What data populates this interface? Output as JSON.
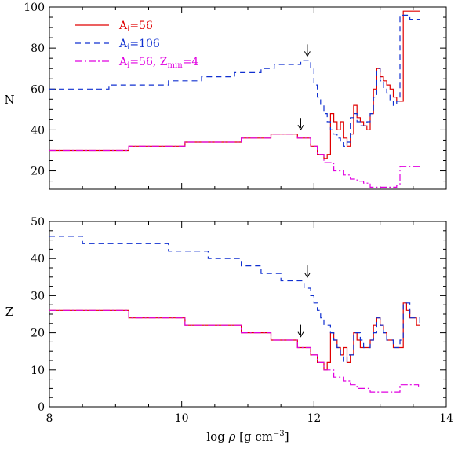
{
  "chart_data": [
    {
      "type": "line",
      "ylabel": "N",
      "xlim": [
        8,
        14
      ],
      "ylim": [
        11,
        100
      ],
      "xticks": [
        8,
        10,
        12,
        14
      ],
      "yticks": [
        20,
        40,
        60,
        80,
        100
      ],
      "ytick_labels": [
        "20",
        "40",
        "60",
        "80",
        "100"
      ],
      "legend": {
        "placement": "top-left",
        "entries": [
          {
            "base": "A",
            "sub": "i",
            "rest": "=56",
            "sub2": "",
            "rest2": ""
          },
          {
            "base": "A",
            "sub": "i",
            "rest": "=106",
            "sub2": "",
            "rest2": ""
          },
          {
            "base": "A",
            "sub": "i",
            "rest": "=56, Z",
            "sub2": "min",
            "rest2": "=4"
          }
        ]
      },
      "arrows": [
        {
          "x": 11.9,
          "y": 78
        },
        {
          "x": 11.8,
          "y": 42
        }
      ],
      "series": [
        {
          "color": "#e00000",
          "dash": "",
          "x": [
            8.0,
            9.2,
            10.05,
            10.9,
            11.35,
            11.75,
            11.95,
            12.05,
            12.15,
            12.2,
            12.25,
            12.3,
            12.35,
            12.4,
            12.45,
            12.5,
            12.55,
            12.6,
            12.65,
            12.7,
            12.75,
            12.8,
            12.85,
            12.9,
            12.95,
            13.0,
            13.05,
            13.1,
            13.15,
            13.2,
            13.25,
            13.3,
            13.35,
            13.4,
            13.6
          ],
          "y": [
            30,
            32,
            34,
            36,
            38,
            36,
            32,
            28,
            26,
            28,
            48,
            44,
            40,
            44,
            36,
            32,
            38,
            52,
            46,
            44,
            42,
            40,
            48,
            60,
            70,
            66,
            64,
            62,
            60,
            56,
            54,
            54,
            98,
            98,
            98
          ]
        },
        {
          "color": "#1030d0",
          "dash": "7,5",
          "x": [
            8.0,
            8.3,
            8.9,
            9.4,
            9.8,
            10.3,
            10.8,
            11.0,
            11.2,
            11.4,
            11.5,
            11.65,
            11.8,
            11.85,
            11.9,
            11.95,
            12.0,
            12.05,
            12.1,
            12.15,
            12.2,
            12.25,
            12.3,
            12.35,
            12.4,
            12.45,
            12.5,
            12.55,
            12.6,
            12.65,
            12.7,
            12.75,
            12.8,
            12.85,
            12.9,
            12.95,
            13.0,
            13.05,
            13.1,
            13.15,
            13.2,
            13.25,
            13.3,
            13.35,
            13.45,
            13.6
          ],
          "y": [
            60,
            60,
            62,
            62,
            64,
            66,
            68,
            68,
            70,
            72,
            72,
            72,
            74,
            74,
            74,
            70,
            62,
            56,
            52,
            48,
            44,
            40,
            38,
            36,
            34,
            32,
            34,
            46,
            48,
            44,
            42,
            42,
            44,
            48,
            56,
            70,
            64,
            60,
            58,
            54,
            52,
            54,
            96,
            96,
            94,
            94
          ]
        },
        {
          "color": "#e000e0",
          "dash": "9,3,2,3",
          "x": [
            8.0,
            9.2,
            10.05,
            10.9,
            11.35,
            11.75,
            11.95,
            12.05,
            12.15,
            12.3,
            12.45,
            12.55,
            12.65,
            12.75,
            12.85,
            13.05,
            13.25,
            13.3,
            13.6
          ],
          "y": [
            30,
            32,
            34,
            36,
            38,
            36,
            32,
            28,
            24,
            20,
            18,
            16,
            15,
            14,
            12,
            12,
            13,
            22,
            22
          ]
        }
      ]
    },
    {
      "type": "line",
      "xlabel_text": "log ",
      "xlabel_symbol": "ρ",
      "xlabel_unit": " [g cm",
      "xlabel_sup": "−3",
      "xlabel_close": "]",
      "ylabel": "Z",
      "xlim": [
        8,
        14
      ],
      "ylim": [
        0,
        50
      ],
      "xticks": [
        8,
        10,
        12,
        14
      ],
      "xtick_labels": [
        "8",
        "10",
        "12",
        "14"
      ],
      "yticks": [
        0,
        10,
        20,
        30,
        40,
        50
      ],
      "ytick_labels": [
        "0",
        "10",
        "20",
        "30",
        "40",
        "50"
      ],
      "arrows": [
        {
          "x": 11.9,
          "y": 36
        },
        {
          "x": 11.8,
          "y": 20
        }
      ],
      "series": [
        {
          "color": "#e00000",
          "dash": "",
          "x": [
            8.0,
            9.2,
            10.05,
            10.9,
            11.35,
            11.75,
            11.95,
            12.05,
            12.15,
            12.2,
            12.25,
            12.3,
            12.35,
            12.4,
            12.45,
            12.5,
            12.55,
            12.6,
            12.65,
            12.7,
            12.75,
            12.8,
            12.85,
            12.9,
            12.95,
            13.0,
            13.05,
            13.1,
            13.15,
            13.2,
            13.25,
            13.3,
            13.35,
            13.4,
            13.45,
            13.55,
            13.6
          ],
          "y": [
            26,
            24,
            22,
            20,
            18,
            16,
            14,
            12,
            10,
            12,
            20,
            18,
            16,
            14,
            16,
            12,
            14,
            20,
            18,
            16,
            16,
            16,
            18,
            22,
            24,
            22,
            20,
            18,
            18,
            16,
            16,
            16,
            28,
            26,
            24,
            22,
            22
          ]
        },
        {
          "color": "#1030d0",
          "dash": "7,5",
          "x": [
            8.0,
            8.5,
            9.8,
            10.4,
            10.9,
            11.2,
            11.5,
            11.85,
            11.95,
            12.0,
            12.05,
            12.1,
            12.15,
            12.2,
            12.25,
            12.3,
            12.35,
            12.4,
            12.45,
            12.5,
            12.55,
            12.6,
            12.65,
            12.7,
            12.75,
            12.8,
            12.85,
            12.9,
            12.95,
            13.0,
            13.05,
            13.1,
            13.15,
            13.2,
            13.25,
            13.3,
            13.35,
            13.45,
            13.6
          ],
          "y": [
            46,
            44,
            42,
            40,
            38,
            36,
            34,
            32,
            30,
            28,
            26,
            24,
            22,
            22,
            20,
            18,
            16,
            14,
            12,
            14,
            14,
            20,
            20,
            18,
            16,
            16,
            18,
            20,
            24,
            22,
            20,
            18,
            18,
            16,
            16,
            18,
            28,
            24,
            22
          ]
        },
        {
          "color": "#e000e0",
          "dash": "9,3,2,3",
          "x": [
            8.0,
            9.2,
            10.05,
            10.9,
            11.35,
            11.75,
            11.95,
            12.05,
            12.15,
            12.3,
            12.45,
            12.55,
            12.65,
            12.75,
            12.85,
            13.05,
            13.25,
            13.3,
            13.55,
            13.58
          ],
          "y": [
            26,
            24,
            22,
            20,
            18,
            16,
            14,
            12,
            10,
            8,
            7,
            6,
            5,
            5,
            4,
            4,
            4,
            6,
            6,
            5
          ]
        }
      ]
    }
  ]
}
